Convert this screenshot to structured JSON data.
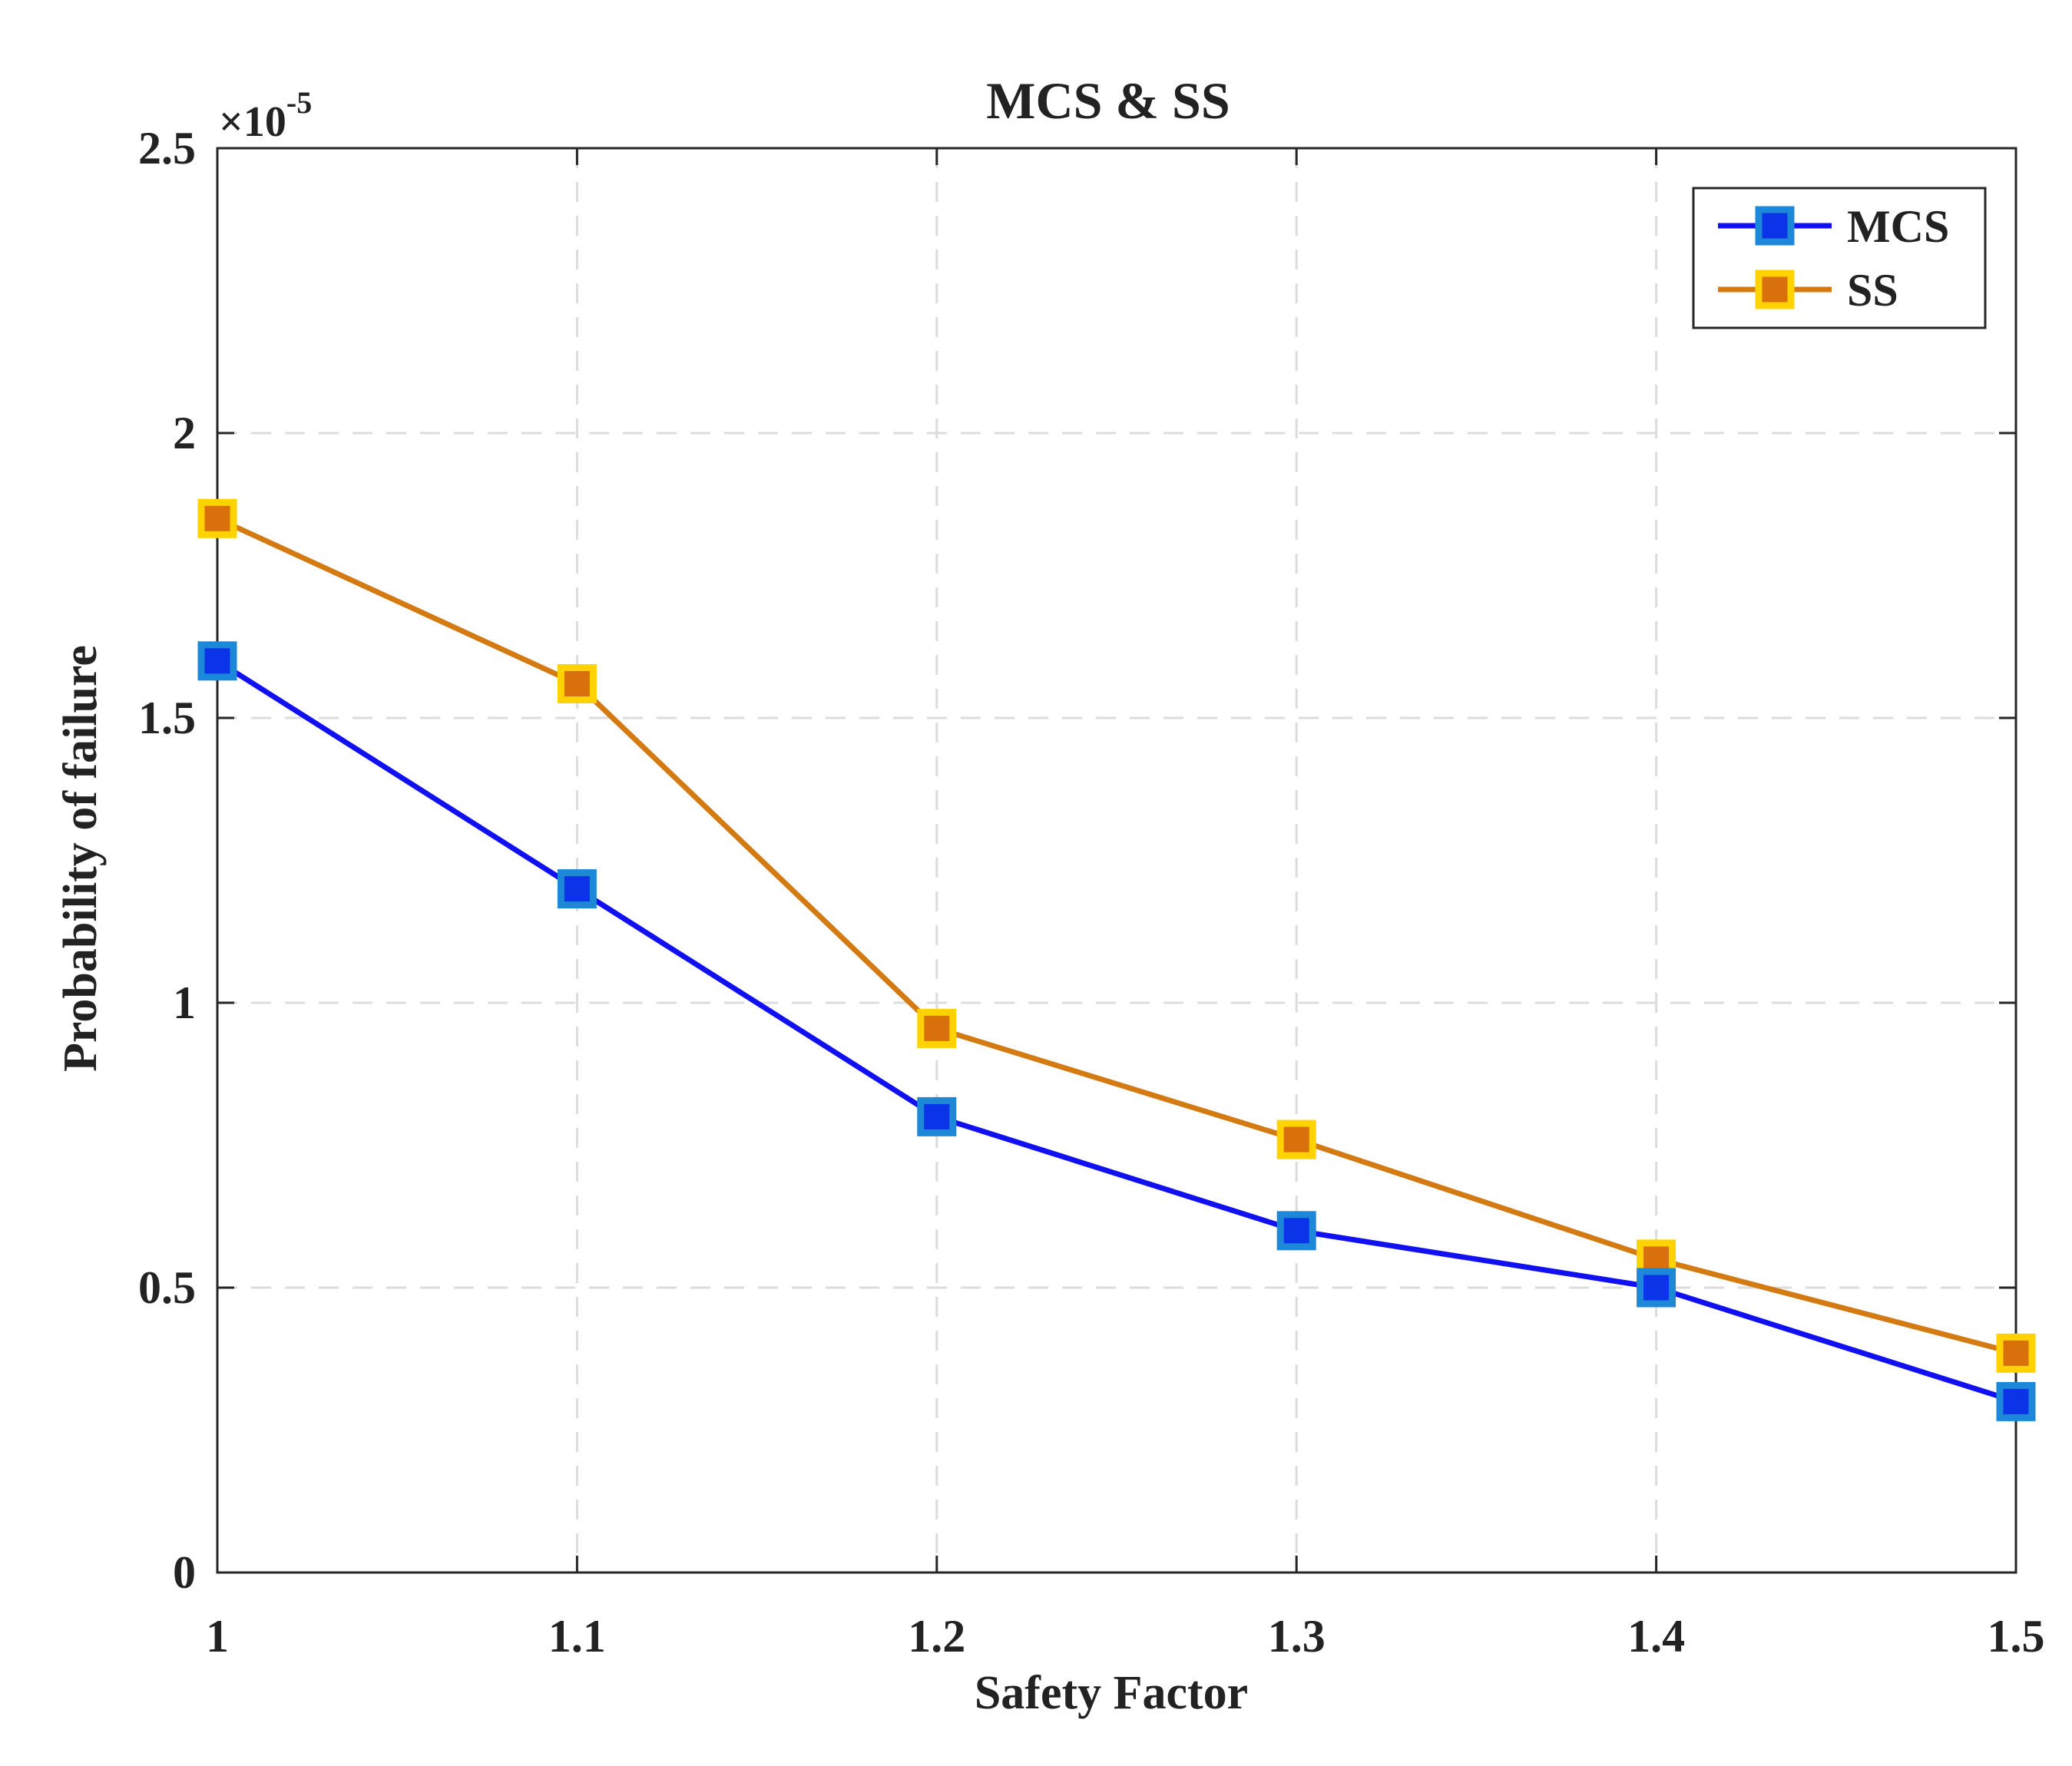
{
  "chart_data": {
    "type": "line",
    "title": "MCS & SS",
    "xlabel": "Safety Factor",
    "ylabel": "Probability of failure",
    "y_exponent_prefix": "×10",
    "y_exponent_power": "-5",
    "x": [
      1.0,
      1.1,
      1.2,
      1.3,
      1.4,
      1.5
    ],
    "x_tick_labels": [
      "1",
      "1.1",
      "1.2",
      "1.3",
      "1.4",
      "1.5"
    ],
    "y_ticks": [
      0,
      0.5,
      1,
      1.5,
      2,
      2.5
    ],
    "y_tick_labels": [
      "0",
      "0.5",
      "1",
      "1.5",
      "2",
      "2.5"
    ],
    "xlim": [
      1.0,
      1.5
    ],
    "ylim": [
      0,
      2.5
    ],
    "grid": true,
    "legend_position": "top-right",
    "series": [
      {
        "name": "MCS",
        "values": [
          1.6,
          1.2,
          0.8,
          0.6,
          0.5,
          0.3
        ],
        "line_color": "#1010f0",
        "marker_edge": "#1e88d8",
        "marker_face": "#0b33e8"
      },
      {
        "name": "SS",
        "values": [
          1.85,
          1.56,
          0.955,
          0.76,
          0.55,
          0.385
        ],
        "line_color": "#d47a12",
        "marker_edge": "#ffd200",
        "marker_face": "#d8700c"
      }
    ]
  }
}
